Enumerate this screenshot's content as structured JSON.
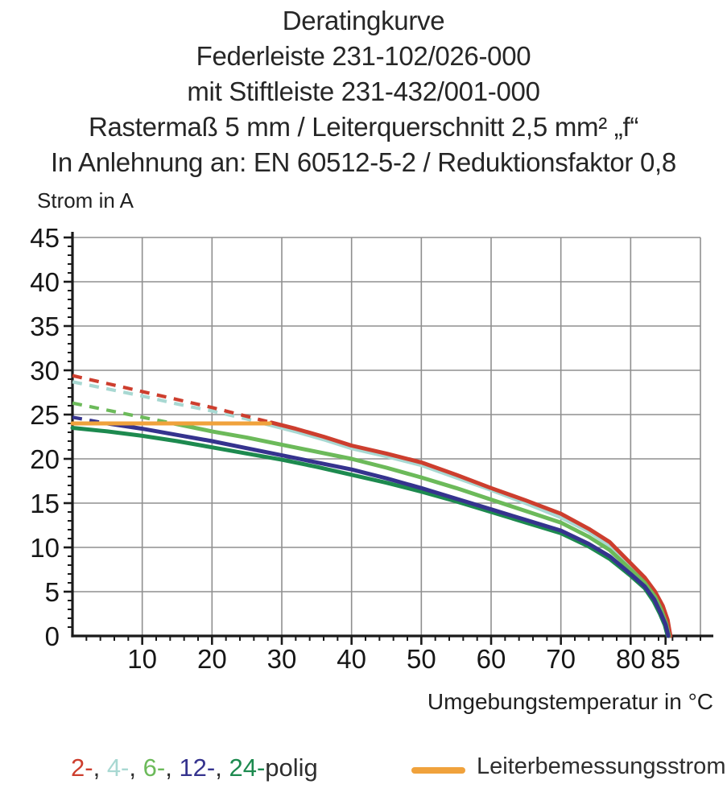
{
  "title": {
    "lines": [
      "Deratingkurve",
      "Federleiste 231-102/026-000",
      "mit Stiftleiste 231-432/001-000",
      "Rastermaß 5 mm / Leiterquerschnitt 2,5 mm² „f“",
      "In Anlehnung an: EN 60512-5-2 / Reduktionsfaktor 0,8"
    ]
  },
  "chart_data": {
    "type": "line",
    "title": "Deratingkurve",
    "xlabel": "Umgebungstemperatur in °C",
    "ylabel": "Strom in A",
    "xlim": [
      0,
      90
    ],
    "ylim": [
      0,
      45
    ],
    "grid": true,
    "x_tick_labels": [
      10,
      20,
      30,
      40,
      50,
      60,
      70,
      80,
      85
    ],
    "y_tick_labels": [
      0,
      5,
      10,
      15,
      20,
      25,
      30,
      35,
      40,
      45
    ],
    "x_gridline_step": 10,
    "y_gridline_step": 5,
    "x_minor_tick_step": 2,
    "y_minor_tick_step": 1,
    "colors": {
      "grid": "#8f8f8f",
      "axis": "#1a1a1a",
      "rated": "#f0a23c"
    },
    "series": [
      {
        "name": "2-polig",
        "color": "#cd3e2e",
        "dashed_until": 28.5,
        "draw_order": 2,
        "points": [
          [
            0,
            29.4
          ],
          [
            5,
            28.5
          ],
          [
            10,
            27.6
          ],
          [
            15,
            26.7
          ],
          [
            20,
            25.8
          ],
          [
            25,
            24.8
          ],
          [
            28.5,
            24.1
          ],
          [
            32,
            23.4
          ],
          [
            36,
            22.5
          ],
          [
            40,
            21.5
          ],
          [
            45,
            20.6
          ],
          [
            50,
            19.6
          ],
          [
            55,
            18.2
          ],
          [
            60,
            16.7
          ],
          [
            65,
            15.3
          ],
          [
            70,
            13.8
          ],
          [
            74,
            12.1
          ],
          [
            77,
            10.6
          ],
          [
            80,
            8.2
          ],
          [
            82,
            6.6
          ],
          [
            83.5,
            5.0
          ],
          [
            84.6,
            3.4
          ],
          [
            85.3,
            1.8
          ],
          [
            85.7,
            0
          ]
        ]
      },
      {
        "name": "4-polig",
        "color": "#a8d8d2",
        "dashed_until": 27.5,
        "draw_order": 1,
        "points": [
          [
            0,
            28.7
          ],
          [
            5,
            27.9
          ],
          [
            10,
            27.1
          ],
          [
            15,
            26.2
          ],
          [
            20,
            25.4
          ],
          [
            25,
            24.5
          ],
          [
            27.5,
            24.0
          ],
          [
            32,
            23.1
          ],
          [
            36,
            22.2
          ],
          [
            40,
            21.2
          ],
          [
            45,
            20.3
          ],
          [
            50,
            19.3
          ],
          [
            55,
            17.9
          ],
          [
            60,
            16.5
          ],
          [
            65,
            15.0
          ],
          [
            70,
            13.4
          ],
          [
            74,
            11.8
          ],
          [
            77,
            10.2
          ],
          [
            80,
            7.9
          ],
          [
            82,
            6.3
          ],
          [
            83.5,
            4.7
          ],
          [
            84.5,
            3.1
          ],
          [
            85.2,
            1.6
          ],
          [
            85.6,
            0
          ]
        ]
      },
      {
        "name": "6-polig",
        "color": "#6cba5a",
        "dashed_until": 14.5,
        "draw_order": 3,
        "points": [
          [
            0,
            26.3
          ],
          [
            5,
            25.5
          ],
          [
            10,
            24.7
          ],
          [
            14.5,
            24.0
          ],
          [
            20,
            23.1
          ],
          [
            25,
            22.4
          ],
          [
            30,
            21.6
          ],
          [
            35,
            20.8
          ],
          [
            40,
            20.0
          ],
          [
            45,
            19.0
          ],
          [
            50,
            17.9
          ],
          [
            55,
            16.7
          ],
          [
            60,
            15.4
          ],
          [
            65,
            14.1
          ],
          [
            70,
            12.8
          ],
          [
            74,
            11.2
          ],
          [
            77,
            9.7
          ],
          [
            80,
            7.5
          ],
          [
            82,
            6.0
          ],
          [
            83.5,
            4.4
          ],
          [
            84.4,
            2.9
          ],
          [
            85.1,
            1.4
          ],
          [
            85.5,
            0
          ]
        ]
      },
      {
        "name": "12-polig",
        "color": "#35338e",
        "dashed_until": 5,
        "draw_order": 5,
        "points": [
          [
            0,
            24.7
          ],
          [
            5,
            24.0
          ],
          [
            10,
            23.4
          ],
          [
            15,
            22.7
          ],
          [
            20,
            22.0
          ],
          [
            25,
            21.2
          ],
          [
            30,
            20.4
          ],
          [
            35,
            19.6
          ],
          [
            40,
            18.8
          ],
          [
            45,
            17.8
          ],
          [
            50,
            16.7
          ],
          [
            55,
            15.5
          ],
          [
            60,
            14.3
          ],
          [
            65,
            13.1
          ],
          [
            70,
            11.9
          ],
          [
            74,
            10.4
          ],
          [
            77,
            9.0
          ],
          [
            80,
            7.0
          ],
          [
            82,
            5.6
          ],
          [
            83.4,
            4.1
          ],
          [
            84.3,
            2.6
          ],
          [
            85.0,
            1.3
          ],
          [
            85.4,
            0
          ]
        ]
      },
      {
        "name": "24-polig",
        "color": "#1d8a4f",
        "dashed_until": 0,
        "draw_order": 4,
        "points": [
          [
            0,
            23.5
          ],
          [
            5,
            23.1
          ],
          [
            10,
            22.6
          ],
          [
            15,
            22.0
          ],
          [
            20,
            21.3
          ],
          [
            25,
            20.6
          ],
          [
            30,
            19.9
          ],
          [
            35,
            19.1
          ],
          [
            40,
            18.2
          ],
          [
            45,
            17.3
          ],
          [
            50,
            16.3
          ],
          [
            55,
            15.2
          ],
          [
            60,
            14.0
          ],
          [
            65,
            12.8
          ],
          [
            70,
            11.6
          ],
          [
            74,
            10.1
          ],
          [
            77,
            8.7
          ],
          [
            80,
            6.8
          ],
          [
            82,
            5.4
          ],
          [
            83.3,
            3.9
          ],
          [
            84.2,
            2.5
          ],
          [
            84.9,
            1.2
          ],
          [
            85.3,
            0
          ]
        ]
      }
    ],
    "rated_line": {
      "name": "Leiterbemessungsstrom",
      "value": 24,
      "x_range": [
        0,
        28.3
      ],
      "color": "#f0a23c"
    }
  },
  "legend": {
    "polig_parts": [
      {
        "text": "2-",
        "color": "#cd3e2e"
      },
      {
        "text": ", ",
        "color": "#2e2e2e"
      },
      {
        "text": "4-",
        "color": "#a8d8d2"
      },
      {
        "text": ", ",
        "color": "#2e2e2e"
      },
      {
        "text": "6-",
        "color": "#6cba5a"
      },
      {
        "text": ", ",
        "color": "#2e2e2e"
      },
      {
        "text": "12-",
        "color": "#35338e"
      },
      {
        "text": ", ",
        "color": "#2e2e2e"
      },
      {
        "text": "24-",
        "color": "#1d8a4f"
      },
      {
        "text": "polig",
        "color": "#2e2e2e"
      }
    ],
    "rated": {
      "label": "Leiterbemessungsstrom",
      "color": "#f0a23c"
    }
  }
}
